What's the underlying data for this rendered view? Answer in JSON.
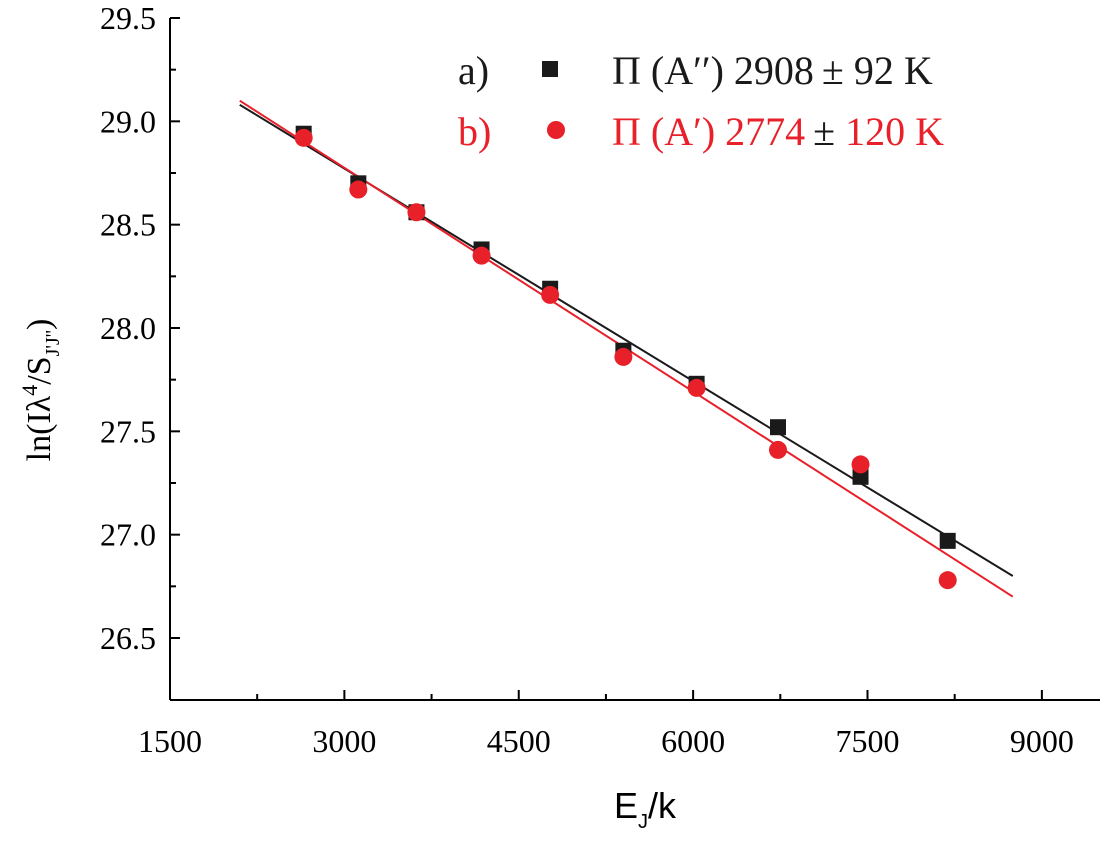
{
  "chart_data": {
    "type": "scatter",
    "title": "",
    "xlabel": {
      "main": "E",
      "sub": "J",
      "suffix": "/k"
    },
    "ylabel": {
      "prefix": "ln(Iλ",
      "sup": "4",
      "mid": "/S",
      "sub": "J'J''",
      "suffix": ")"
    },
    "xlim": [
      1500,
      9500
    ],
    "ylim": [
      26.2,
      29.5
    ],
    "xticks": [
      1500,
      3000,
      4500,
      6000,
      7500,
      9000
    ],
    "xtick_labels": [
      "1500",
      "3000",
      "4500",
      "6000",
      "7500",
      "9000"
    ],
    "yticks": [
      26.5,
      27.0,
      27.5,
      28.0,
      28.5,
      29.0,
      29.5
    ],
    "ytick_labels": [
      "26.5",
      "27.0",
      "27.5",
      "28.0",
      "28.5",
      "29.0",
      "29.5"
    ],
    "grid": false,
    "legend_position": "top-right",
    "series": [
      {
        "name": "a) Π (A′′) 2908 ± 92 K",
        "legend_letter": "a)",
        "legend_label": "Π (A′′) 2908",
        "legend_pm": "±",
        "legend_err": " 92  K",
        "marker": "square",
        "color": "#1a1a1a",
        "x": [
          2650,
          3120,
          3620,
          4180,
          4770,
          5400,
          6030,
          6730,
          7440,
          8190
        ],
        "y": [
          28.94,
          28.7,
          28.56,
          28.38,
          28.19,
          27.89,
          27.73,
          27.52,
          27.28,
          26.97
        ],
        "fit": {
          "x": [
            2100,
            8750
          ],
          "y": [
            29.08,
            26.8
          ]
        }
      },
      {
        "name": "b) Π (A′) 2774 ± 120 K",
        "legend_letter": "b)",
        "legend_label": "Π (A′)  2774",
        "legend_pm": "±",
        "legend_err": " 120 K",
        "marker": "circle",
        "color": "#e8202a",
        "x": [
          2650,
          3120,
          3620,
          4180,
          4770,
          5400,
          6030,
          6730,
          7440,
          8190
        ],
        "y": [
          28.92,
          28.67,
          28.56,
          28.35,
          28.16,
          27.86,
          27.71,
          27.41,
          27.34,
          26.78
        ],
        "fit": {
          "x": [
            2100,
            8750
          ],
          "y": [
            29.1,
            26.7
          ]
        }
      }
    ]
  }
}
